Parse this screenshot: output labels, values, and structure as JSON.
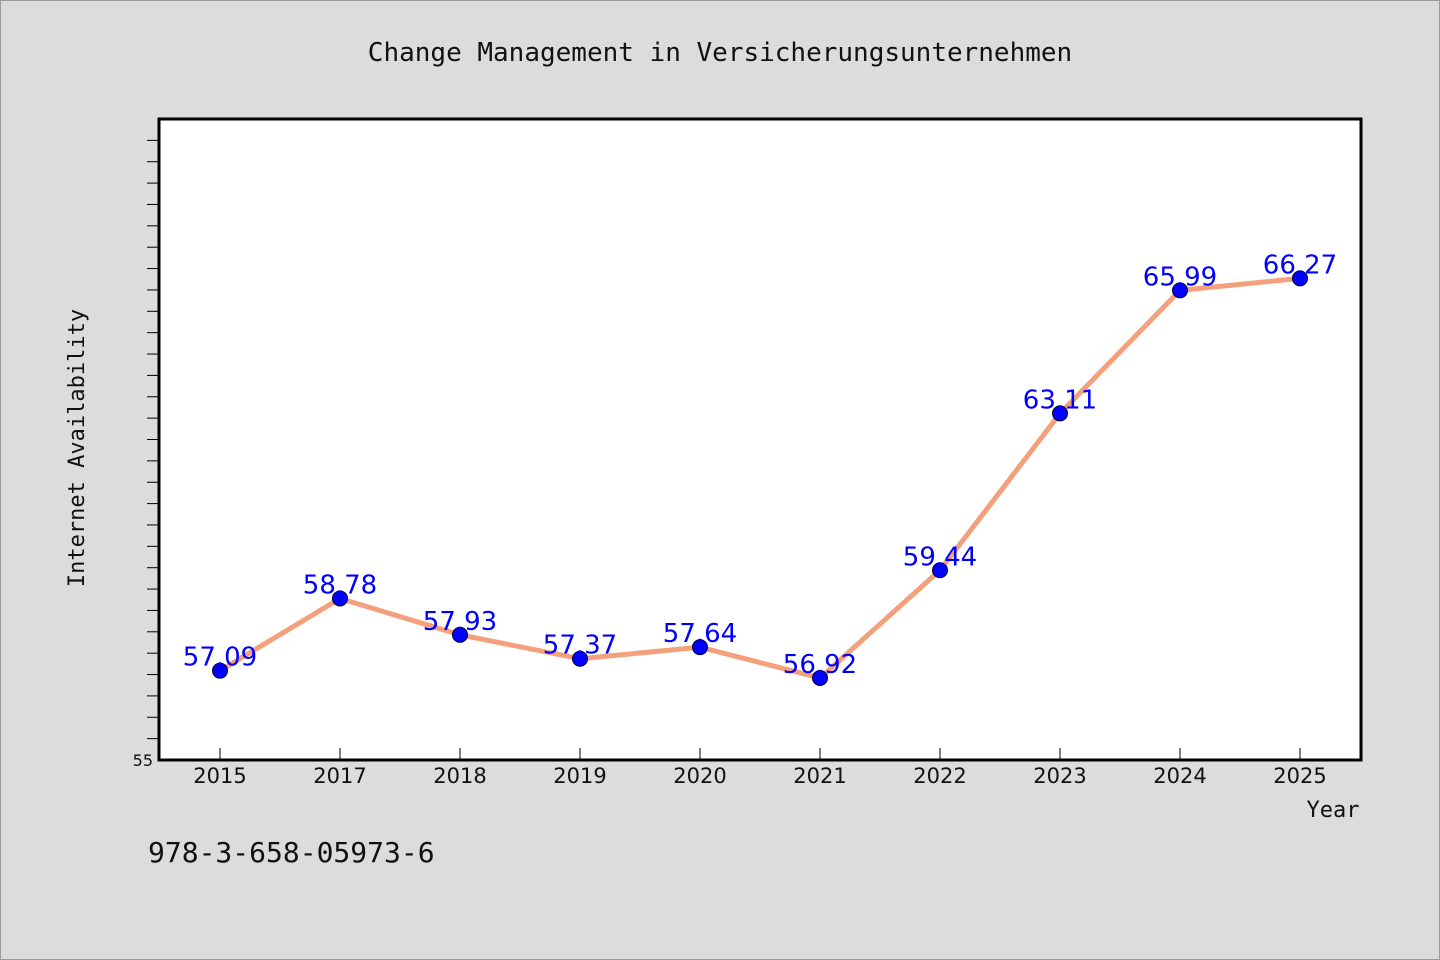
{
  "chart_data": {
    "type": "line",
    "title": "Change Management in Versicherungsunternehmen",
    "xlabel": "Year",
    "ylabel": "Internet Availability",
    "categories": [
      "2015",
      "2017",
      "2018",
      "2019",
      "2020",
      "2021",
      "2022",
      "2023",
      "2024",
      "2025"
    ],
    "values": [
      57.09,
      58.78,
      57.93,
      57.37,
      57.64,
      56.92,
      59.44,
      63.11,
      65.99,
      66.27
    ],
    "data_labels": [
      "57.09",
      "58.78",
      "57.93",
      "57.37",
      "57.64",
      "56.92",
      "59.44",
      "63.11",
      "65.99",
      "66.27"
    ],
    "ylim": [
      55,
      70
    ],
    "ytick_labels": [
      "55"
    ],
    "grid": false,
    "line_color": "#f4a07c",
    "marker_color": "#0000ff",
    "label_color": "#0000ff"
  },
  "footer": {
    "isbn": "978-3-658-05973-6"
  }
}
